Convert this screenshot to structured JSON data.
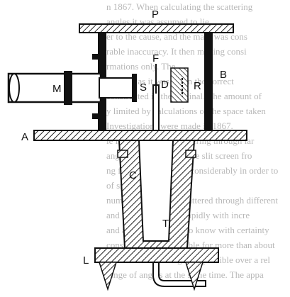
{
  "background_text": [
    "n 1867. When calculating the scattering",
    "angles it was assumed to lie",
    "er to the cause, and the mass was cons",
    "rable inaccuracy. It then making consi",
    "rmations only. The",
    "at as far as it was given the correct",
    "constructed in the original. The amount of",
    "y limited by calculations of the space taken",
    "Investigations were made in 1867.",
    "ie investigation of scattering through lar",
    "angles the distance of the slit screen fro",
    "ng foil were increased considerably in order to",
    "of smaller solid angle.",
    "number of particles scattered through different",
    "and to decrease very rapidly with incre",
    "and as it is important to know with certainty",
    "constituent is responsible for more than about",
    "measurements being only possible over a rel",
    "range of angles at the same time. The appa"
  ],
  "labels": {
    "P": "P",
    "B": "B",
    "M": "M",
    "S": "S",
    "D": "D",
    "R": "R",
    "F": "F",
    "A": "A",
    "C": "C",
    "T": "T",
    "L": "L"
  },
  "colors": {
    "ink": "#111111",
    "hatch": "#222222",
    "paper": "#ffffff",
    "faint_text": "#b8b8b8"
  }
}
